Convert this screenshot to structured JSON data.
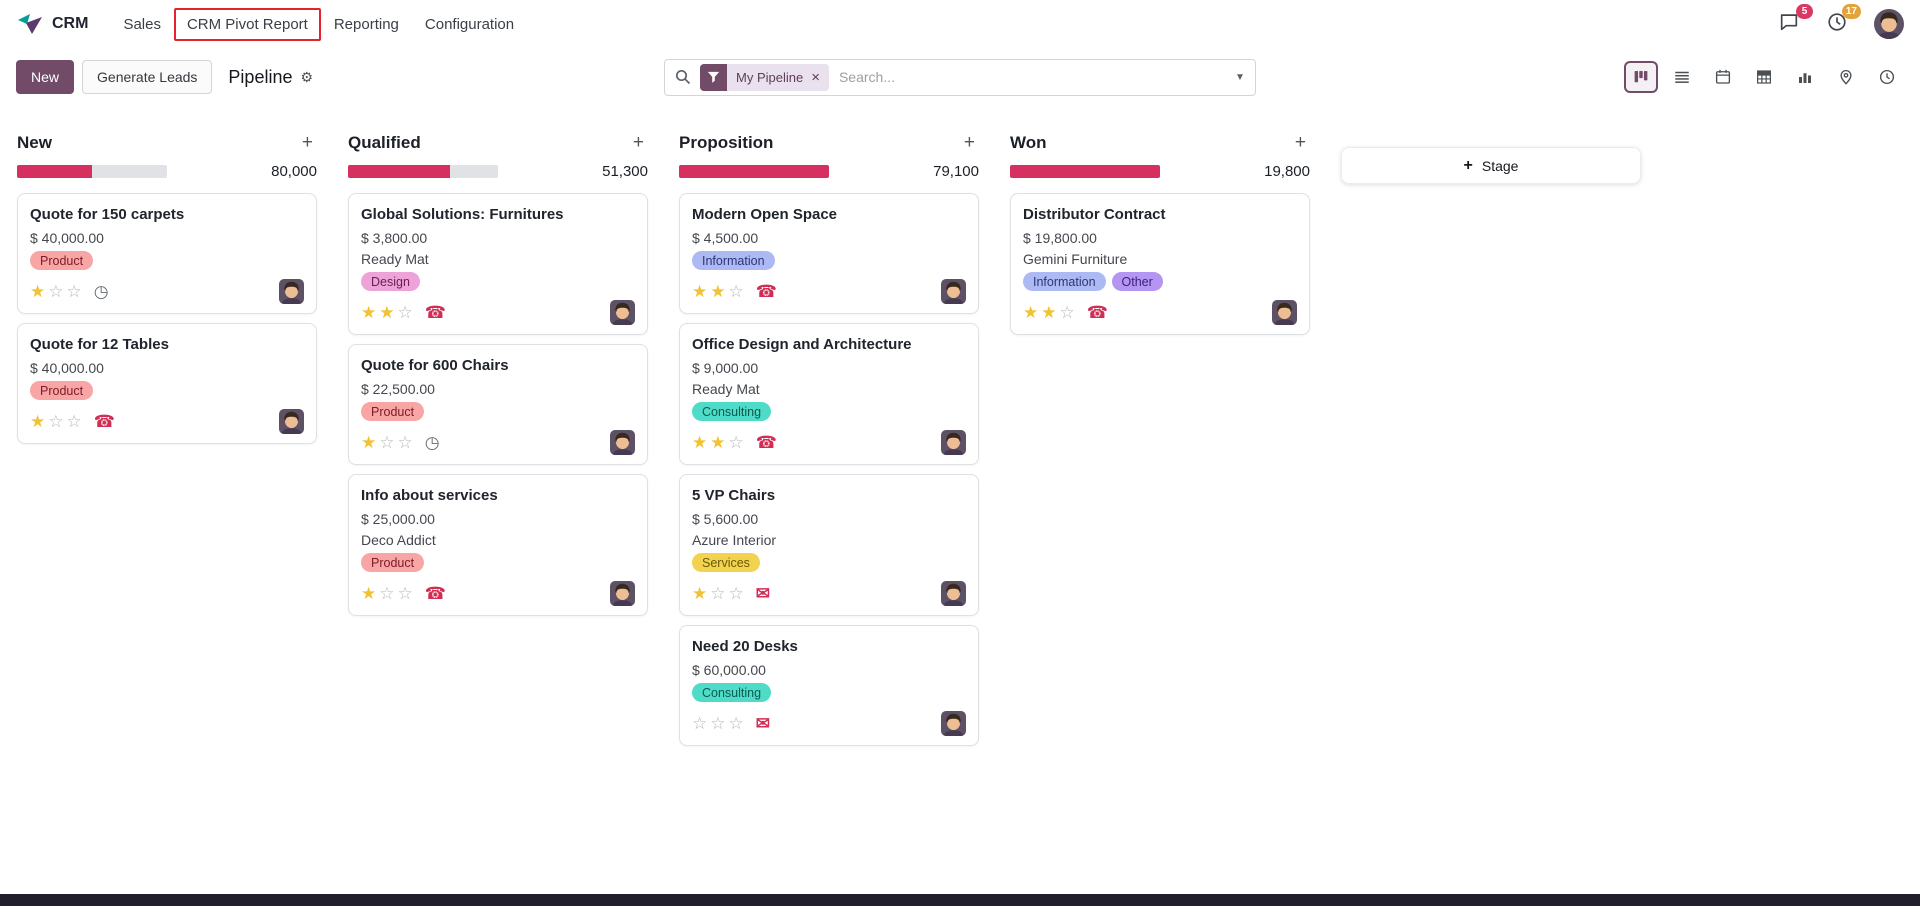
{
  "nav": {
    "app_name": "CRM",
    "items": [
      {
        "label": "Sales"
      },
      {
        "label": "CRM Pivot Report"
      },
      {
        "label": "Reporting"
      },
      {
        "label": "Configuration"
      }
    ],
    "messages_badge": "5",
    "activities_badge": "17"
  },
  "control_panel": {
    "new_button": "New",
    "generate_leads_button": "Generate Leads",
    "title": "Pipeline",
    "search": {
      "facet_label": "My Pipeline",
      "placeholder": "Search..."
    },
    "view_switcher": {
      "active": "kanban",
      "views": [
        "kanban",
        "list",
        "calendar",
        "pivot",
        "graph",
        "map",
        "activity"
      ]
    }
  },
  "colors": {
    "primary": "#714B67",
    "progress_fill": "#d5305f",
    "progress_track": "#e1e2e6",
    "annotation_box": "#e5232d",
    "star_filled": "#f1c232",
    "activity_icon_danger": "#d02e54",
    "messages_badge_bg": "#d93a63",
    "activities_badge_bg": "#e2a33b"
  },
  "board": {
    "add_stage_button": "Stage",
    "columns": [
      {
        "name": "New",
        "total": "80,000",
        "progress": "50%",
        "cards": [
          {
            "title": "Quote for 150 carpets",
            "amount": "$ 40,000.00",
            "company": "",
            "tags": [
              {
                "label": "Product",
                "bg": "#f7a5a5",
                "fg": "#801c28"
              }
            ],
            "stars": 1,
            "icon": "clock-icon"
          },
          {
            "title": "Quote for 12 Tables",
            "amount": "$ 40,000.00",
            "company": "",
            "tags": [
              {
                "label": "Product",
                "bg": "#f7a5a5",
                "fg": "#801c28"
              }
            ],
            "stars": 1,
            "icon": "phone-icon"
          }
        ]
      },
      {
        "name": "Qualified",
        "total": "51,300",
        "progress": "68%",
        "cards": [
          {
            "title": "Global Solutions: Furnitures",
            "amount": "$ 3,800.00",
            "company": "Ready Mat",
            "tags": [
              {
                "label": "Design",
                "bg": "#eda3d8",
                "fg": "#6d1d55"
              }
            ],
            "stars": 2,
            "icon": "phone-icon"
          },
          {
            "title": "Quote for 600 Chairs",
            "amount": "$ 22,500.00",
            "company": "",
            "tags": [
              {
                "label": "Product",
                "bg": "#f7a5a5",
                "fg": "#801c28"
              }
            ],
            "stars": 1,
            "icon": "clock-icon"
          },
          {
            "title": "Info about services",
            "amount": "$ 25,000.00",
            "company": "Deco Addict",
            "tags": [
              {
                "label": "Product",
                "bg": "#f7a5a5",
                "fg": "#801c28"
              }
            ],
            "stars": 1,
            "icon": "phone-icon"
          }
        ]
      },
      {
        "name": "Proposition",
        "total": "79,100",
        "progress": "100%",
        "cards": [
          {
            "title": "Modern Open Space",
            "amount": "$ 4,500.00",
            "company": "",
            "tags": [
              {
                "label": "Information",
                "bg": "#adb9f3",
                "fg": "#2c3677"
              }
            ],
            "stars": 2,
            "icon": "phone-icon"
          },
          {
            "title": "Office Design and Architecture",
            "amount": "$ 9,000.00",
            "company": "Ready Mat",
            "tags": [
              {
                "label": "Consulting",
                "bg": "#4edcc8",
                "fg": "#0a5a4f"
              }
            ],
            "stars": 2,
            "icon": "phone-icon"
          },
          {
            "title": "5 VP Chairs",
            "amount": "$ 5,600.00",
            "company": "Azure Interior",
            "tags": [
              {
                "label": "Services",
                "bg": "#f1d34f",
                "fg": "#6b5907"
              }
            ],
            "stars": 1,
            "icon": "mail-icon"
          },
          {
            "title": "Need 20 Desks",
            "amount": "$ 60,000.00",
            "company": "",
            "tags": [
              {
                "label": "Consulting",
                "bg": "#4edcc8",
                "fg": "#0a5a4f"
              }
            ],
            "stars": 0,
            "icon": "mail-icon"
          }
        ]
      },
      {
        "name": "Won",
        "total": "19,800",
        "progress": "100%",
        "cards": [
          {
            "title": "Distributor Contract",
            "amount": "$ 19,800.00",
            "company": "Gemini Furniture",
            "tags": [
              {
                "label": "Information",
                "bg": "#adb9f3",
                "fg": "#2c3677"
              },
              {
                "label": "Other",
                "bg": "#b495f2",
                "fg": "#3a2180"
              }
            ],
            "stars": 2,
            "icon": "phone-icon"
          }
        ]
      }
    ]
  }
}
